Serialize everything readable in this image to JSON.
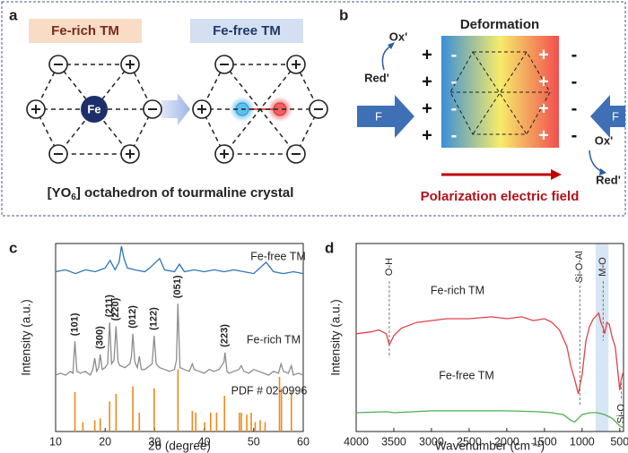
{
  "panel_a": {
    "label": "a",
    "left_title": "Fe-rich TM",
    "right_title": "Fe-free TM",
    "center": "Fe",
    "caption": [
      "[YO",
      "6",
      "] octahedron of tourmaline crystal"
    ]
  },
  "panel_b": {
    "label": "b",
    "title": "Deformation",
    "force": [
      "F",
      "F"
    ],
    "ox_top": "Ox'",
    "red_top": "Red'",
    "ox_bottom": "Ox'",
    "red_bottom": "Red'",
    "left_outer": [
      "+",
      "+",
      "+",
      "+"
    ],
    "left_inner": [
      "-",
      "-",
      "-",
      "-"
    ],
    "right_inner": [
      "+",
      "+",
      "+",
      "+"
    ],
    "right_outer": [
      "-",
      "-",
      "-",
      "-"
    ],
    "field": "Polarization electric field"
  },
  "chart_data": [
    {
      "type": "line",
      "panel": "c",
      "x_label": "2θ (degree)",
      "y_label": "Intensity (a.u.)",
      "xlim": [
        10,
        60
      ],
      "xticks": [
        10,
        20,
        30,
        40,
        50,
        60
      ],
      "ylim": [
        0,
        100
      ],
      "series": [
        {
          "name": "Fe-free TM",
          "color": "#2e75b6",
          "x": [
            10,
            12,
            14,
            16,
            18,
            20,
            21,
            22,
            22.8,
            23.3,
            23.8,
            24.5,
            26,
            28,
            29,
            31,
            32,
            34,
            35,
            36,
            38,
            40,
            42,
            44,
            46,
            48,
            50,
            52.5,
            54,
            56,
            58,
            60
          ],
          "values": [
            85,
            86,
            84,
            86,
            85,
            87,
            91,
            86,
            90,
            98.6,
            92,
            87,
            86,
            85,
            87,
            92,
            86,
            85,
            89,
            85,
            86,
            85,
            86,
            85,
            86,
            85,
            84,
            90,
            85,
            84,
            85,
            84
          ]
        },
        {
          "name": "Fe-rich TM",
          "color": "#8c8c8c",
          "x": [
            10,
            11,
            12,
            13,
            13.5,
            13.9,
            14.3,
            15,
            16,
            17,
            17.5,
            17.9,
            18.3,
            18.7,
            19,
            19.4,
            20,
            20.5,
            20.9,
            21.3,
            21.8,
            22.2,
            22.6,
            23,
            24,
            25,
            25.3,
            25.6,
            26,
            26.5,
            26.9,
            27.3,
            28,
            29,
            29.5,
            29.9,
            30.3,
            31,
            32,
            33,
            34,
            34.4,
            34.7,
            35.1,
            36,
            37,
            37.6,
            38,
            39,
            40,
            41,
            42,
            43,
            44,
            44.2,
            44.6,
            45,
            46,
            47,
            47.5,
            48,
            49,
            50,
            51,
            52,
            53,
            54,
            55,
            55.5,
            56,
            57,
            57.6,
            58,
            59,
            60
          ],
          "values": [
            30,
            31,
            30,
            32,
            31,
            48,
            32,
            31,
            32,
            30,
            33,
            39,
            32,
            34,
            41,
            33,
            34,
            36,
            58,
            36,
            38,
            56,
            37,
            35,
            34,
            36,
            40,
            52,
            37,
            34,
            40,
            33,
            33,
            35,
            36,
            51,
            36,
            34,
            33,
            32,
            33,
            38,
            68,
            34,
            33,
            32,
            36,
            33,
            32,
            31,
            33,
            32,
            33,
            37,
            42,
            32,
            31,
            32,
            33,
            35,
            32,
            31,
            33,
            32,
            31,
            30,
            32,
            31,
            36,
            32,
            31,
            35,
            30,
            31,
            30
          ]
        },
        {
          "name": "PDF # 02-0996",
          "color": "#ed8a1b",
          "style": "stem",
          "x": [
            13.9,
            15.5,
            17.9,
            19.0,
            20.9,
            22.2,
            25.6,
            26.9,
            29.9,
            34.7,
            37.6,
            38.3,
            40.1,
            41.3,
            42.5,
            44.1,
            47.1,
            47.5,
            48.6,
            49.5,
            50.3,
            51.3,
            52.3,
            55.2,
            55.6,
            57.6
          ],
          "values": [
            21,
            5,
            6,
            7,
            16,
            20,
            24,
            10,
            23,
            33,
            11,
            10,
            5,
            10,
            10,
            19,
            10,
            10,
            9,
            10,
            5,
            6,
            5,
            29,
            23,
            21
          ]
        }
      ],
      "annotations": [
        {
          "text": "(101)",
          "x": 13.9
        },
        {
          "text": "(300)",
          "x": 19
        },
        {
          "text": "(211)",
          "x": 20.9
        },
        {
          "text": "(220)",
          "x": 22.2
        },
        {
          "text": "(012)",
          "x": 25.6
        },
        {
          "text": "(122)",
          "x": 29.9
        },
        {
          "text": "(051)",
          "x": 34.7
        },
        {
          "text": "(223)",
          "x": 44.2
        }
      ]
    },
    {
      "type": "line",
      "panel": "d",
      "x_label": "Wavenumber (cm⁻¹)",
      "y_label": "Intensity (a.u.)",
      "xlim": [
        4000,
        450
      ],
      "xticks": [
        4000,
        3500,
        3000,
        2500,
        2000,
        1500,
        1000,
        500
      ],
      "ylim": [
        0,
        100
      ],
      "band": [
        820,
        650
      ],
      "band_color": "#d6e6f4",
      "series": [
        {
          "name": "Fe-rich TM",
          "color": "#e0424a",
          "x": [
            4000,
            3800,
            3700,
            3600,
            3560,
            3500,
            3400,
            3200,
            3000,
            2800,
            2500,
            2200,
            2000,
            1800,
            1650,
            1500,
            1400,
            1300,
            1200,
            1150,
            1100,
            1050,
            1000,
            950,
            900,
            850,
            800,
            780,
            750,
            720,
            700,
            670,
            640,
            600,
            560,
            520,
            500,
            480,
            450
          ],
          "values": [
            52,
            53,
            54,
            52,
            46,
            51,
            55,
            58,
            59,
            60,
            60,
            61,
            60,
            61,
            59,
            60,
            58,
            54,
            45,
            35,
            28,
            20,
            30,
            48,
            56,
            60,
            62,
            63,
            58,
            55,
            52,
            58,
            57,
            50,
            45,
            30,
            22,
            28,
            32
          ]
        },
        {
          "name": "Fe-free TM",
          "color": "#4caf50",
          "x": [
            4000,
            3600,
            3500,
            3000,
            2500,
            2000,
            1600,
            1400,
            1250,
            1150,
            1100,
            1050,
            1000,
            900,
            800,
            700,
            600,
            500,
            450
          ],
          "values": [
            10,
            10.5,
            10,
            11,
            11,
            11,
            10.5,
            10,
            9,
            6,
            5,
            7,
            9,
            10,
            10,
            9,
            7,
            3,
            2
          ]
        }
      ],
      "annotations": [
        {
          "text": "O-H",
          "x": 3560
        },
        {
          "text": "Si-O-Al",
          "x": 1030
        },
        {
          "text": "M-O",
          "x": 720
        },
        {
          "text": "Si-O",
          "x": 480
        }
      ]
    }
  ]
}
